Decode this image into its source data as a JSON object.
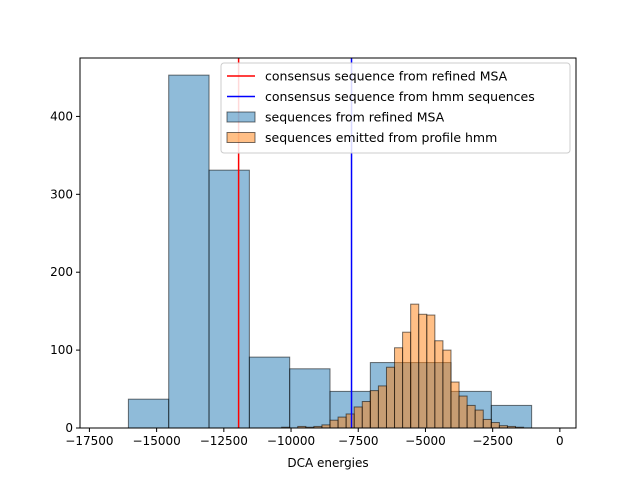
{
  "chart_data": {
    "type": "histogram",
    "title": "",
    "xlabel": "DCA energies",
    "ylabel": "",
    "xlim": [
      -17500,
      500
    ],
    "ylim": [
      0,
      475
    ],
    "xticks": [
      -17500,
      -15000,
      -12500,
      -10000,
      -7500,
      -5000,
      -2500,
      0
    ],
    "xtick_labels": [
      "−17500",
      "−15000",
      "−12500",
      "−10000",
      "−7500",
      "−5000",
      "−2500",
      "0"
    ],
    "yticks": [
      0,
      100,
      200,
      300,
      400
    ],
    "ytick_labels": [
      "0",
      "100",
      "200",
      "300",
      "400"
    ],
    "grid": false,
    "legend_position": "top-right",
    "series": [
      {
        "name": "sequences from refined MSA",
        "color": "#1f77b4",
        "alpha": 0.5,
        "bins": [
          {
            "x0": -16050,
            "x1": -14550,
            "count": 37
          },
          {
            "x0": -14550,
            "x1": -13050,
            "count": 453
          },
          {
            "x0": -13050,
            "x1": -11550,
            "count": 331
          },
          {
            "x0": -11550,
            "x1": -10050,
            "count": 91
          },
          {
            "x0": -10050,
            "x1": -8550,
            "count": 76
          },
          {
            "x0": -8550,
            "x1": -7050,
            "count": 47
          },
          {
            "x0": -7050,
            "x1": -5550,
            "count": 84
          },
          {
            "x0": -5550,
            "x1": -4050,
            "count": 84
          },
          {
            "x0": -4050,
            "x1": -2550,
            "count": 47
          },
          {
            "x0": -2550,
            "x1": -1050,
            "count": 29
          }
        ]
      },
      {
        "name": "sequences emitted from profile hmm",
        "color": "#ff7f0e",
        "alpha": 0.5,
        "bin_start": -10350,
        "bin_width": 300,
        "counts": [
          1,
          0,
          2,
          1,
          2,
          4,
          10,
          14,
          18,
          27,
          34,
          48,
          54,
          78,
          103,
          123,
          159,
          146,
          145,
          112,
          100,
          59,
          41,
          29,
          23,
          11,
          7,
          3,
          2,
          1
        ]
      }
    ],
    "vlines": [
      {
        "name": "consensus sequence from refined MSA",
        "x": -11950,
        "color": "#ff0000"
      },
      {
        "name": "consensus sequence from hmm sequences",
        "x": -7750,
        "color": "#0000ff"
      }
    ]
  }
}
